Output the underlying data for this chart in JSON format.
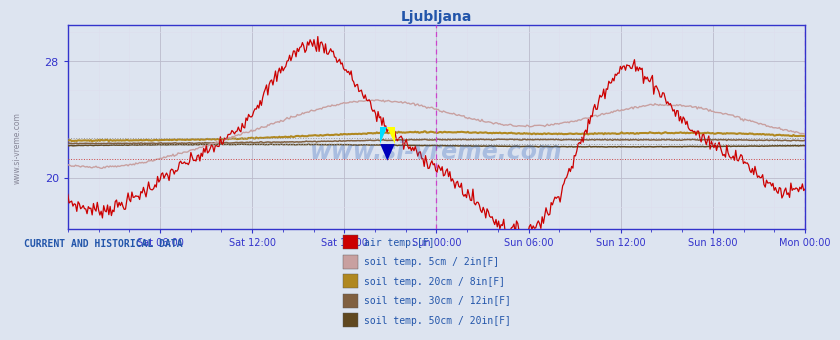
{
  "title": "Ljubljana",
  "title_color": "#2255aa",
  "bg_color": "#dde4f0",
  "plot_bg_color": "#dde4f0",
  "axis_color": "#3333cc",
  "grid_color_major": "#bbbbcc",
  "grid_color_minor": "#ddddee",
  "watermark": "www.si-vreme.com",
  "watermark_color": "#3366bb",
  "x_tick_labels": [
    "Sat 06:00",
    "Sat 12:00",
    "Sat 18:00",
    "Sun 00:00",
    "Sun 06:00",
    "Sun 12:00",
    "Sun 18:00",
    "Mon 00:00"
  ],
  "yticks": [
    20,
    28
  ],
  "ymin": 16.5,
  "ymax": 30.5,
  "legend_label_color": "#2255aa",
  "current_and_historical": "CURRENT AND HISTORICAL DATA",
  "legend_items": [
    {
      "label": "air temp.[F]",
      "color": "#cc0000"
    },
    {
      "label": "soil temp. 5cm / 2in[F]",
      "color": "#c8a0a0"
    },
    {
      "label": "soil temp. 20cm / 8in[F]",
      "color": "#b08820"
    },
    {
      "label": "soil temp. 30cm / 12in[F]",
      "color": "#806040"
    },
    {
      "label": "soil temp. 50cm / 20in[F]",
      "color": "#604820"
    }
  ],
  "n_points": 576,
  "period_hours": 48,
  "hline_dotted_upper": 22.7,
  "hline_dotted_lower": 22.3,
  "hline_red_dotted": 21.3,
  "vline_sun00": 24,
  "vline_mon00": 48
}
